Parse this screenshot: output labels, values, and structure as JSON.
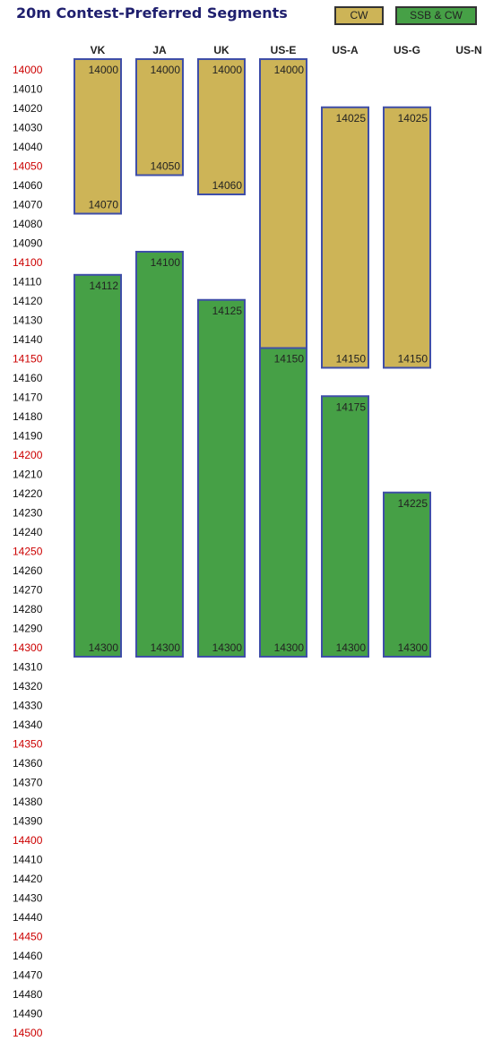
{
  "title": "20m Contest-Preferred Segments",
  "colors": {
    "cw": "#cdb457",
    "ssb": "#46a046",
    "border": "#3f4ea8",
    "red_label": "#cc0000",
    "label": "#111111"
  },
  "legend": [
    {
      "label": "CW",
      "color": "#cdb457"
    },
    {
      "label": "SSB & CW",
      "color": "#46a046"
    }
  ],
  "chart_data": {
    "type": "bar",
    "title": "20m Contest-Preferred Segments",
    "categories": [
      "VK",
      "JA",
      "UK",
      "US-E",
      "US-A",
      "US-G",
      "US-N"
    ],
    "ylim": [
      14000,
      14500
    ],
    "y_ticks_step": 10,
    "y_highlight_step": 50,
    "series": [
      {
        "name": "CW",
        "color": "#cdb457",
        "segments": [
          {
            "category": "VK",
            "start": 14000,
            "end": 14070
          },
          {
            "category": "JA",
            "start": 14000,
            "end": 14050
          },
          {
            "category": "UK",
            "start": 14000,
            "end": 14060
          },
          {
            "category": "US-E",
            "start": 14000,
            "end": 14150
          },
          {
            "category": "US-A",
            "start": 14025,
            "end": 14150
          },
          {
            "category": "US-G",
            "start": 14025,
            "end": 14150
          }
        ]
      },
      {
        "name": "SSB & CW",
        "color": "#46a046",
        "segments": [
          {
            "category": "VK",
            "start": 14112,
            "end": 14300
          },
          {
            "category": "JA",
            "start": 14100,
            "end": 14300
          },
          {
            "category": "UK",
            "start": 14125,
            "end": 14300
          },
          {
            "category": "US-E",
            "start": 14150,
            "end": 14300
          },
          {
            "category": "US-A",
            "start": 14175,
            "end": 14300
          },
          {
            "category": "US-G",
            "start": 14225,
            "end": 14300
          }
        ]
      }
    ]
  }
}
